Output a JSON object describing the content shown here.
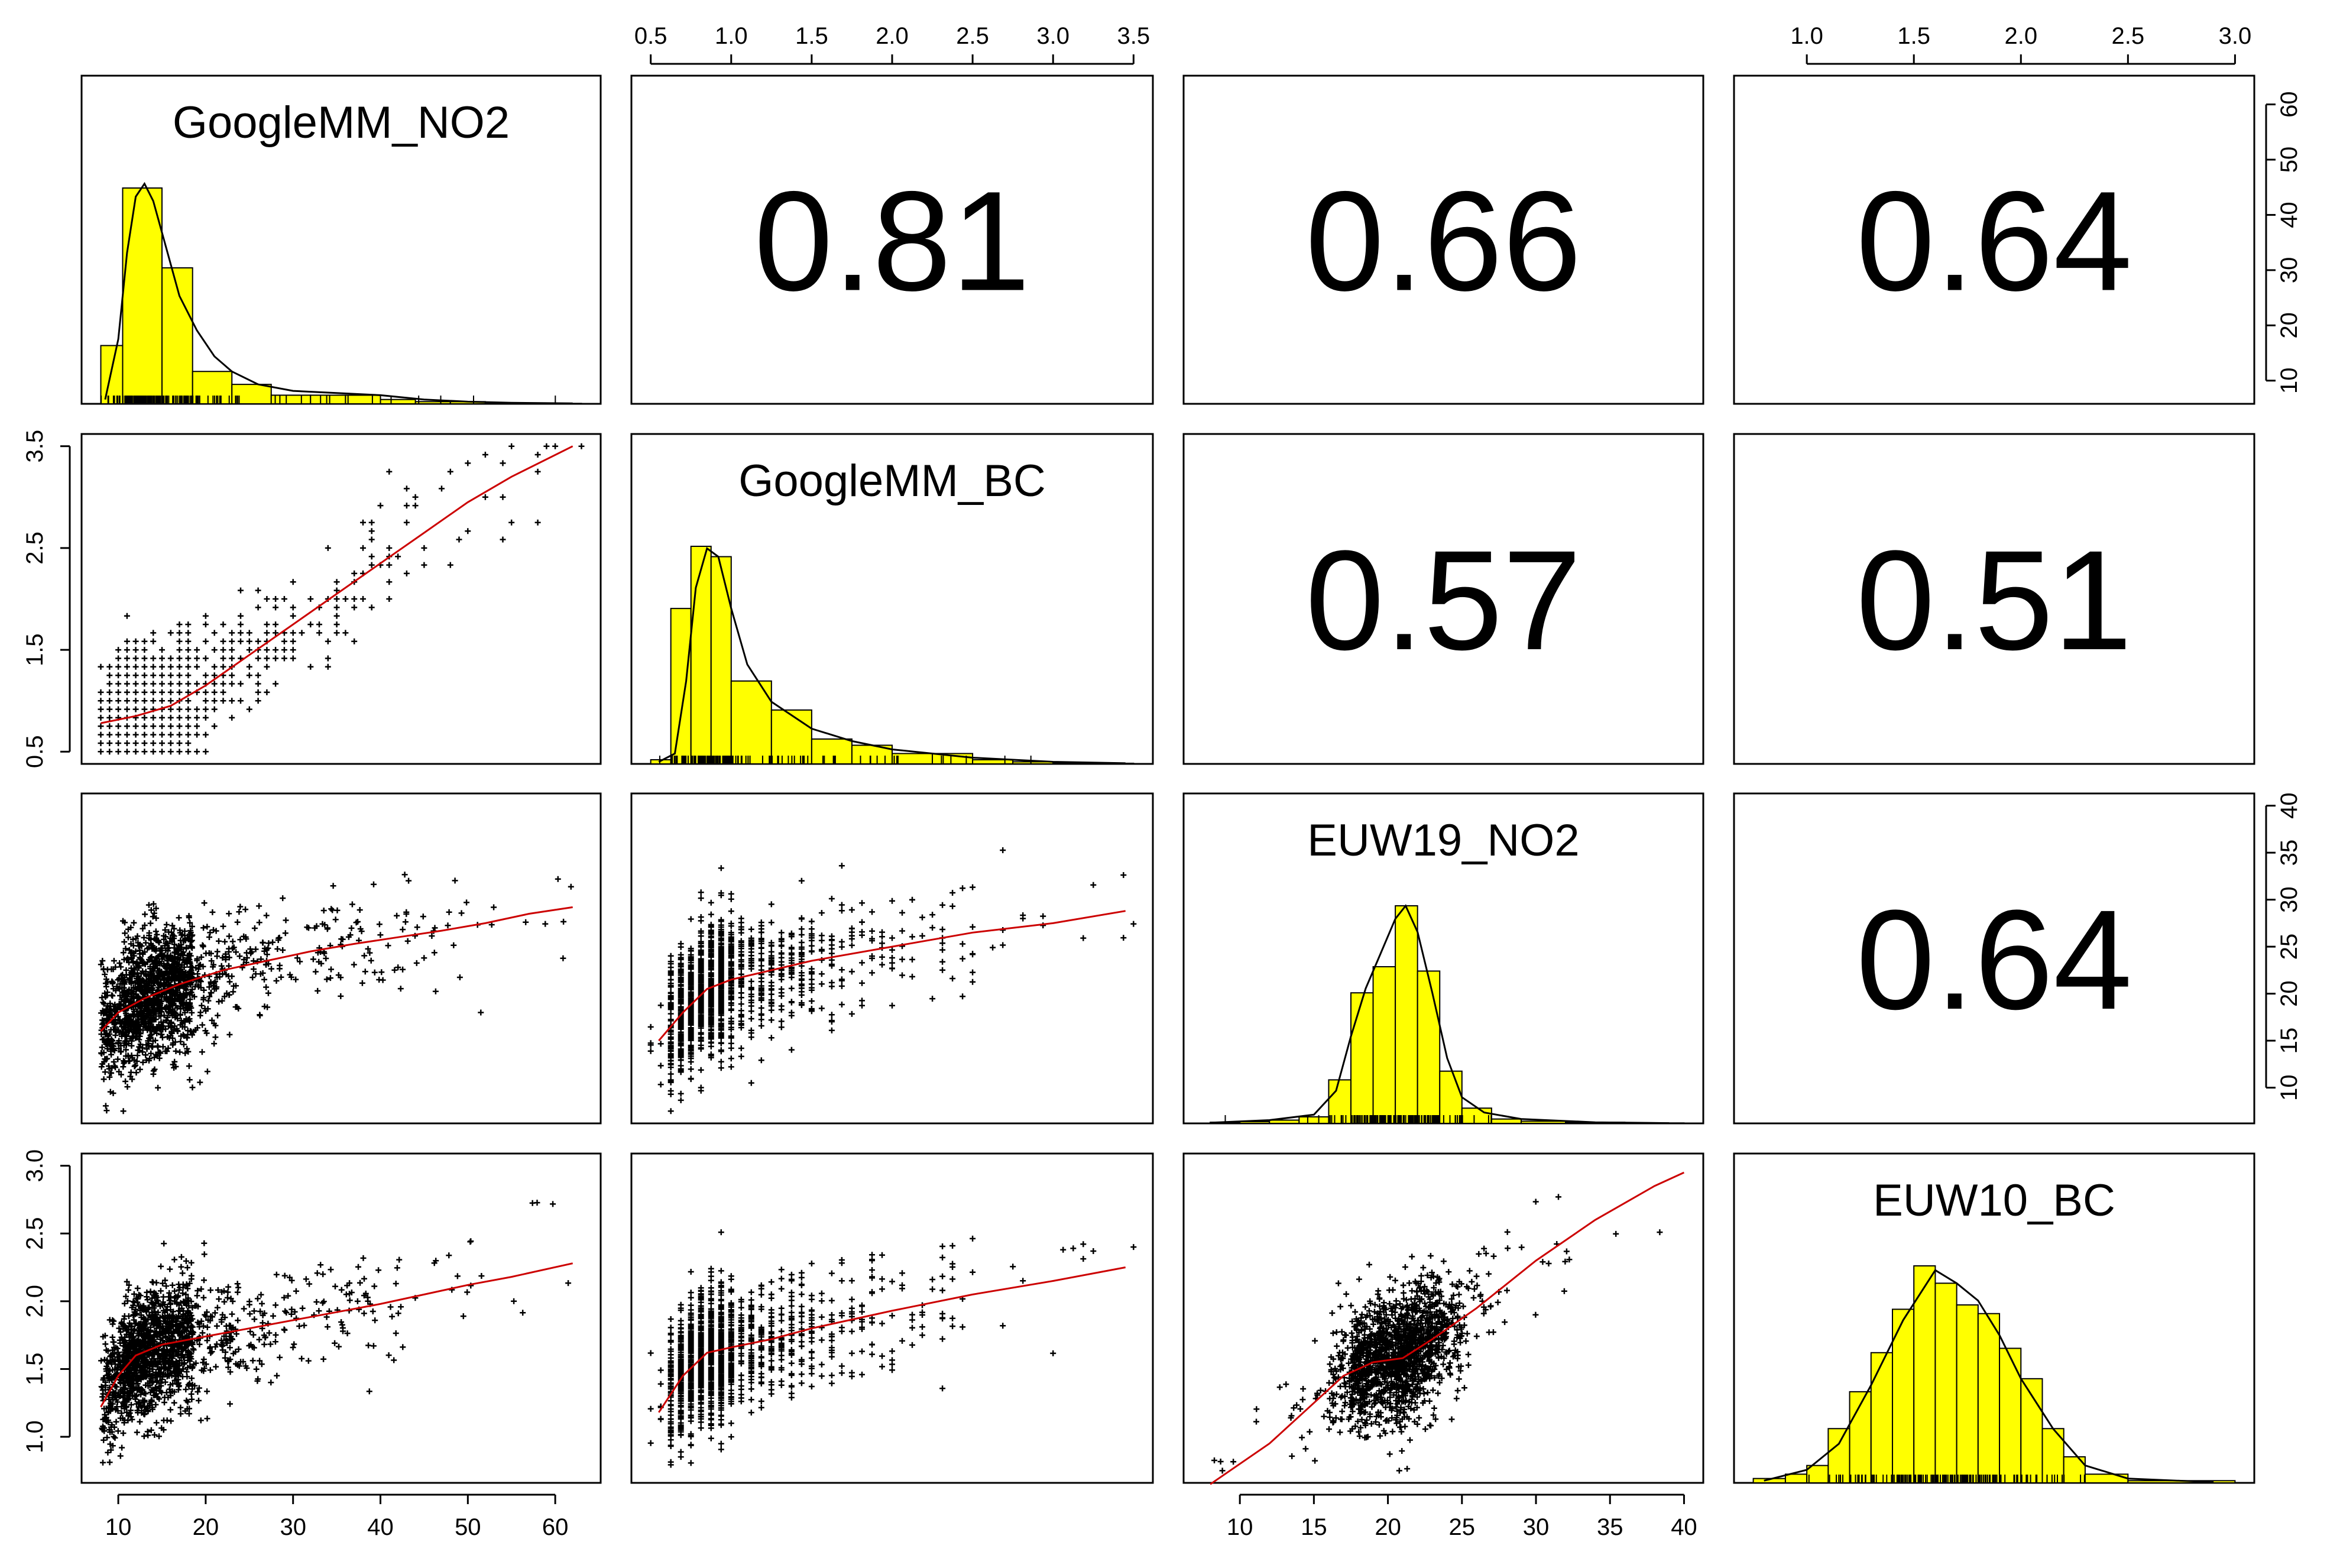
{
  "chart_data": {
    "type": "scatter",
    "title": "",
    "variables": [
      "GoogleMM_NO2",
      "GoogleMM_BC",
      "EUW19_NO2",
      "EUW10_BC"
    ],
    "colors": {
      "histogram_fill": "#ffff00",
      "smooth_line": "#cc0000",
      "points": "#000000"
    },
    "axes": {
      "GoogleMM_NO2": {
        "range": [
          8,
          63
        ],
        "ticks": [
          10,
          20,
          30,
          40,
          50,
          60
        ],
        "tick_labels": [
          "10",
          "20",
          "30",
          "40",
          "50",
          "60"
        ]
      },
      "GoogleMM_BC": {
        "range": [
          0.5,
          3.5
        ],
        "ticks": [
          0.5,
          1.0,
          1.5,
          2.0,
          2.5,
          3.0,
          3.5
        ],
        "tick_labels": [
          "0.5",
          "1.0",
          "1.5",
          "2.0",
          "2.5",
          "3.0",
          "3.5"
        ],
        "side_ticks": [
          0.5,
          1.5,
          2.5,
          3.5
        ],
        "side_tick_labels": [
          "0.5",
          "1.5",
          "2.5",
          "3.5"
        ]
      },
      "EUW19_NO2": {
        "range": [
          7.5,
          40
        ],
        "ticks": [
          10,
          15,
          20,
          25,
          30,
          35,
          40
        ],
        "tick_labels": [
          "10",
          "15",
          "20",
          "25",
          "30",
          "35",
          "40"
        ]
      },
      "EUW10_BC": {
        "range": [
          0.75,
          3.0
        ],
        "ticks": [
          1.0,
          1.5,
          2.0,
          2.5,
          3.0
        ],
        "tick_labels": [
          "1.0",
          "1.5",
          "2.0",
          "2.5",
          "3.0"
        ]
      }
    },
    "correlations": [
      {
        "row": 0,
        "col": 1,
        "value": "0.81"
      },
      {
        "row": 0,
        "col": 2,
        "value": "0.66"
      },
      {
        "row": 0,
        "col": 3,
        "value": "0.64"
      },
      {
        "row": 1,
        "col": 2,
        "value": "0.57"
      },
      {
        "row": 1,
        "col": 3,
        "value": "0.51"
      },
      {
        "row": 2,
        "col": 3,
        "value": "0.64"
      }
    ],
    "histograms": [
      {
        "variable": "GoogleMM_NO2",
        "bin_edges": [
          8,
          10.5,
          15,
          18.5,
          23,
          27.5,
          32,
          36,
          40,
          44,
          48,
          52,
          56,
          60,
          63
        ],
        "counts": [
          27,
          100,
          63,
          15,
          9,
          4,
          4,
          4,
          2,
          1,
          1,
          0.5,
          0.3,
          0.2
        ],
        "density": [
          [
            8.5,
            2
          ],
          [
            10,
            30
          ],
          [
            11,
            70
          ],
          [
            12,
            96
          ],
          [
            13,
            102
          ],
          [
            14,
            94
          ],
          [
            15.5,
            72
          ],
          [
            17,
            50
          ],
          [
            19,
            34
          ],
          [
            21,
            22
          ],
          [
            23,
            15
          ],
          [
            26,
            9
          ],
          [
            30,
            6
          ],
          [
            35,
            5
          ],
          [
            40,
            4
          ],
          [
            45,
            2
          ],
          [
            50,
            1
          ],
          [
            55,
            0.5
          ],
          [
            62,
            0.2
          ]
        ]
      },
      {
        "variable": "GoogleMM_BC",
        "bin_edges": [
          0.5,
          0.625,
          0.75,
          0.875,
          1.0,
          1.25,
          1.5,
          1.75,
          2.0,
          2.25,
          2.5,
          2.75,
          3.0,
          3.25,
          3.5
        ],
        "counts": [
          2,
          75,
          105,
          100,
          40,
          26,
          12,
          9,
          5,
          5,
          2,
          1,
          0.5,
          0.3
        ],
        "density": [
          [
            0.55,
            1
          ],
          [
            0.65,
            5
          ],
          [
            0.72,
            40
          ],
          [
            0.78,
            85
          ],
          [
            0.85,
            104
          ],
          [
            0.92,
            100
          ],
          [
            1.0,
            75
          ],
          [
            1.1,
            48
          ],
          [
            1.25,
            30
          ],
          [
            1.5,
            17
          ],
          [
            1.75,
            11
          ],
          [
            2.0,
            7
          ],
          [
            2.5,
            3
          ],
          [
            3.0,
            1
          ],
          [
            3.45,
            0.3
          ]
        ]
      },
      {
        "variable": "EUW19_NO2",
        "bin_edges": [
          8,
          10,
          12,
          14,
          16,
          17.5,
          19,
          20.5,
          22,
          23.5,
          25,
          27,
          29,
          32,
          36,
          40
        ],
        "counts": [
          0.5,
          0.8,
          1.5,
          3,
          20,
          60,
          72,
          100,
          70,
          24,
          7,
          2,
          1,
          0.5,
          0.2
        ],
        "density": [
          [
            8,
            0.3
          ],
          [
            12,
            1.5
          ],
          [
            15,
            4
          ],
          [
            16.5,
            15
          ],
          [
            17.5,
            40
          ],
          [
            18.5,
            62
          ],
          [
            19.5,
            78
          ],
          [
            20.5,
            94
          ],
          [
            21.2,
            100
          ],
          [
            22,
            88
          ],
          [
            23,
            60
          ],
          [
            24,
            30
          ],
          [
            25,
            12
          ],
          [
            26.5,
            5
          ],
          [
            29,
            2
          ],
          [
            34,
            0.5
          ],
          [
            39,
            0.1
          ]
        ]
      },
      {
        "variable": "EUW10_BC",
        "bin_edges": [
          0.75,
          0.9,
          1.0,
          1.1,
          1.2,
          1.3,
          1.4,
          1.5,
          1.6,
          1.7,
          1.8,
          1.9,
          2.0,
          2.1,
          2.2,
          2.3,
          2.5,
          3.0
        ],
        "counts": [
          2,
          4,
          8,
          25,
          42,
          60,
          80,
          100,
          92,
          82,
          78,
          62,
          48,
          25,
          12,
          4,
          1
        ],
        "density": [
          [
            0.8,
            1
          ],
          [
            1.0,
            6
          ],
          [
            1.15,
            18
          ],
          [
            1.3,
            45
          ],
          [
            1.45,
            75
          ],
          [
            1.6,
            98
          ],
          [
            1.7,
            92
          ],
          [
            1.8,
            84
          ],
          [
            1.9,
            68
          ],
          [
            2.0,
            48
          ],
          [
            2.15,
            25
          ],
          [
            2.3,
            8
          ],
          [
            2.5,
            2
          ],
          [
            2.9,
            0.3
          ]
        ]
      }
    ],
    "scatter": [
      {
        "row": 1,
        "col": 0,
        "x_var": "GoogleMM_NO2",
        "y_var": "GoogleMM_BC",
        "smooth": [
          [
            8,
            0.78
          ],
          [
            12,
            0.85
          ],
          [
            16,
            0.95
          ],
          [
            20,
            1.15
          ],
          [
            25,
            1.45
          ],
          [
            30,
            1.75
          ],
          [
            35,
            2.05
          ],
          [
            40,
            2.35
          ],
          [
            45,
            2.65
          ],
          [
            50,
            2.95
          ],
          [
            55,
            3.2
          ],
          [
            62,
            3.5
          ]
        ]
      },
      {
        "row": 2,
        "col": 0,
        "x_var": "GoogleMM_NO2",
        "y_var": "EUW19_NO2",
        "smooth": [
          [
            8,
            16
          ],
          [
            10,
            18
          ],
          [
            13,
            19.5
          ],
          [
            17,
            21
          ],
          [
            22,
            22.5
          ],
          [
            27,
            23.5
          ],
          [
            32,
            24.5
          ],
          [
            37,
            25.3
          ],
          [
            42,
            26
          ],
          [
            47,
            26.7
          ],
          [
            52,
            27.5
          ],
          [
            57,
            28.5
          ],
          [
            62,
            29.2
          ]
        ]
      },
      {
        "row": 3,
        "col": 0,
        "x_var": "GoogleMM_NO2",
        "y_var": "EUW10_BC",
        "smooth": [
          [
            8,
            1.22
          ],
          [
            10,
            1.45
          ],
          [
            12,
            1.6
          ],
          [
            15,
            1.68
          ],
          [
            20,
            1.74
          ],
          [
            25,
            1.8
          ],
          [
            30,
            1.86
          ],
          [
            35,
            1.92
          ],
          [
            40,
            1.98
          ],
          [
            45,
            2.05
          ],
          [
            50,
            2.12
          ],
          [
            55,
            2.18
          ],
          [
            62,
            2.28
          ]
        ]
      },
      {
        "row": 2,
        "col": 1,
        "x_var": "GoogleMM_BC",
        "y_var": "EUW19_NO2",
        "smooth": [
          [
            0.55,
            15
          ],
          [
            0.7,
            18
          ],
          [
            0.85,
            20.5
          ],
          [
            1.0,
            21.5
          ],
          [
            1.25,
            22.5
          ],
          [
            1.5,
            23.5
          ],
          [
            2.0,
            25
          ],
          [
            2.5,
            26.5
          ],
          [
            3.0,
            27.5
          ],
          [
            3.45,
            28.8
          ]
        ]
      },
      {
        "row": 3,
        "col": 1,
        "x_var": "GoogleMM_BC",
        "y_var": "EUW10_BC",
        "smooth": [
          [
            0.55,
            1.18
          ],
          [
            0.7,
            1.45
          ],
          [
            0.85,
            1.62
          ],
          [
            1.0,
            1.66
          ],
          [
            1.25,
            1.72
          ],
          [
            1.5,
            1.8
          ],
          [
            2.0,
            1.93
          ],
          [
            2.5,
            2.05
          ],
          [
            3.0,
            2.15
          ],
          [
            3.45,
            2.25
          ]
        ]
      },
      {
        "row": 3,
        "col": 2,
        "x_var": "EUW19_NO2",
        "y_var": "EUW10_BC",
        "smooth": [
          [
            8,
            0.65
          ],
          [
            12,
            0.95
          ],
          [
            15,
            1.25
          ],
          [
            17,
            1.45
          ],
          [
            19,
            1.55
          ],
          [
            21,
            1.58
          ],
          [
            23,
            1.72
          ],
          [
            26,
            1.95
          ],
          [
            30,
            2.3
          ],
          [
            34,
            2.6
          ],
          [
            38,
            2.85
          ],
          [
            40,
            2.95
          ]
        ]
      }
    ]
  }
}
